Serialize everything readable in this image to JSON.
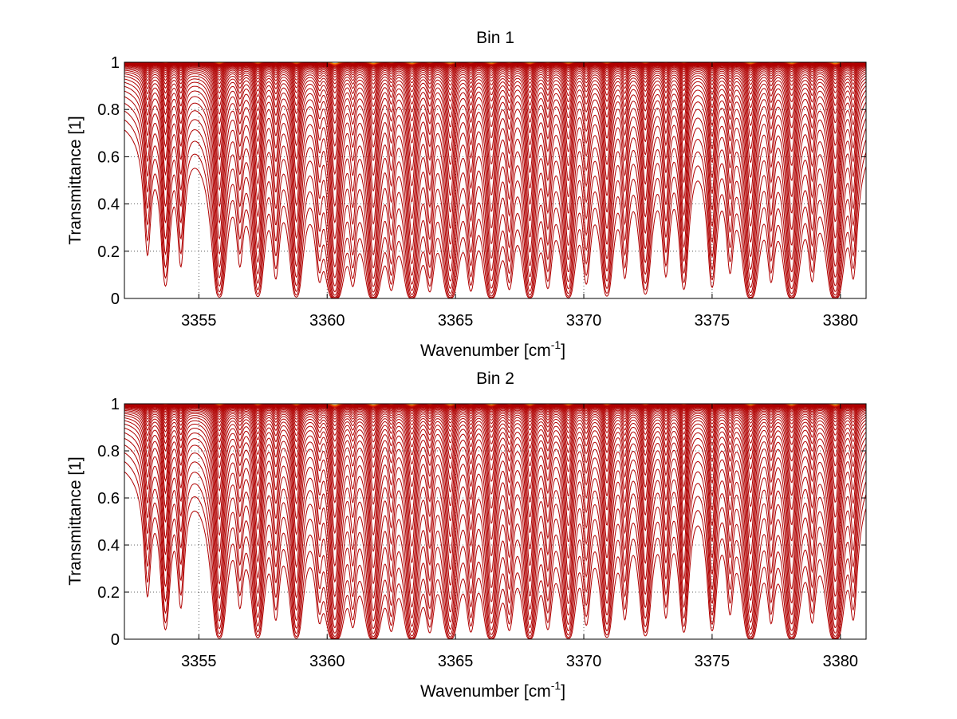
{
  "chart_data": [
    {
      "type": "line",
      "title": "Bin 1",
      "xlabel": "Wavenumber [cm",
      "xlabel_sup": "-1",
      "xlabel_end": "]",
      "ylabel": "Transmittance [1]",
      "xlim": [
        3352.1,
        3381.0
      ],
      "ylim": [
        0,
        1
      ],
      "xticks": [
        3355,
        3360,
        3365,
        3370,
        3375,
        3380
      ],
      "xtick_labels": [
        "3355",
        "3360",
        "3365",
        "3370",
        "3375",
        "3380"
      ],
      "yticks": [
        0,
        0.2,
        0.4,
        0.6,
        0.8,
        1
      ],
      "ytick_labels": [
        "0",
        "0.2",
        "0.4",
        "0.6",
        "0.8",
        "1"
      ],
      "grid": "dotted",
      "legend": "none",
      "series_count": 40,
      "series_colors": [
        "#b00000",
        "#d81e05",
        "#ee6a05",
        "#ffa500"
      ],
      "absorption_lines": [
        {
          "x": 3353.0,
          "strength": 0.25,
          "width": 0.12
        },
        {
          "x": 3353.7,
          "strength": 0.5,
          "width": 0.13
        },
        {
          "x": 3354.3,
          "strength": 0.3,
          "width": 0.12
        },
        {
          "x": 3355.8,
          "strength": 0.95,
          "width": 0.16
        },
        {
          "x": 3356.6,
          "strength": 0.25,
          "width": 0.12
        },
        {
          "x": 3357.3,
          "strength": 0.85,
          "width": 0.15
        },
        {
          "x": 3358.0,
          "strength": 0.35,
          "width": 0.12
        },
        {
          "x": 3358.8,
          "strength": 0.9,
          "width": 0.15
        },
        {
          "x": 3359.7,
          "strength": 0.3,
          "width": 0.12
        },
        {
          "x": 3360.3,
          "strength": 1.7,
          "width": 0.17
        },
        {
          "x": 3361.0,
          "strength": 0.35,
          "width": 0.12
        },
        {
          "x": 3361.8,
          "strength": 1.4,
          "width": 0.17
        },
        {
          "x": 3362.5,
          "strength": 0.45,
          "width": 0.13
        },
        {
          "x": 3363.3,
          "strength": 1.3,
          "width": 0.17
        },
        {
          "x": 3364.0,
          "strength": 0.5,
          "width": 0.13
        },
        {
          "x": 3364.8,
          "strength": 1.2,
          "width": 0.17
        },
        {
          "x": 3365.6,
          "strength": 0.5,
          "width": 0.13
        },
        {
          "x": 3366.4,
          "strength": 1.2,
          "width": 0.17
        },
        {
          "x": 3367.1,
          "strength": 0.45,
          "width": 0.13
        },
        {
          "x": 3367.9,
          "strength": 1.1,
          "width": 0.16
        },
        {
          "x": 3368.6,
          "strength": 0.45,
          "width": 0.13
        },
        {
          "x": 3369.4,
          "strength": 1.0,
          "width": 0.16
        },
        {
          "x": 3370.1,
          "strength": 0.4,
          "width": 0.13
        },
        {
          "x": 3370.9,
          "strength": 0.8,
          "width": 0.15
        },
        {
          "x": 3371.6,
          "strength": 0.35,
          "width": 0.12
        },
        {
          "x": 3372.4,
          "strength": 0.7,
          "width": 0.15
        },
        {
          "x": 3373.2,
          "strength": 0.35,
          "width": 0.12
        },
        {
          "x": 3373.9,
          "strength": 0.55,
          "width": 0.13
        },
        {
          "x": 3375.0,
          "strength": 0.5,
          "width": 0.13
        },
        {
          "x": 3375.7,
          "strength": 0.3,
          "width": 0.12
        },
        {
          "x": 3376.5,
          "strength": 1.2,
          "width": 0.17
        },
        {
          "x": 3377.3,
          "strength": 0.35,
          "width": 0.12
        },
        {
          "x": 3378.1,
          "strength": 1.25,
          "width": 0.17
        },
        {
          "x": 3378.9,
          "strength": 0.35,
          "width": 0.12
        },
        {
          "x": 3379.8,
          "strength": 1.4,
          "width": 0.17
        },
        {
          "x": 3380.5,
          "strength": 0.35,
          "width": 0.12
        }
      ]
    },
    {
      "type": "line",
      "title": "Bin 2",
      "xlabel": "Wavenumber [cm",
      "xlabel_sup": "-1",
      "xlabel_end": "]",
      "ylabel": "Transmittance [1]",
      "xlim": [
        3352.1,
        3381.0
      ],
      "ylim": [
        0,
        1
      ],
      "xticks": [
        3355,
        3360,
        3365,
        3370,
        3375,
        3380
      ],
      "xtick_labels": [
        "3355",
        "3360",
        "3365",
        "3370",
        "3375",
        "3380"
      ],
      "yticks": [
        0,
        0.2,
        0.4,
        0.6,
        0.8,
        1
      ],
      "ytick_labels": [
        "0",
        "0.2",
        "0.4",
        "0.6",
        "0.8",
        "1"
      ],
      "grid": "dotted",
      "legend": "none",
      "series_count": 40,
      "series_colors": [
        "#b00000",
        "#d81e05",
        "#ee6a05",
        "#ffa500"
      ],
      "absorption_lines": [
        {
          "x": 3353.0,
          "strength": 0.25,
          "width": 0.12
        },
        {
          "x": 3353.7,
          "strength": 0.55,
          "width": 0.13
        },
        {
          "x": 3354.3,
          "strength": 0.3,
          "width": 0.12
        },
        {
          "x": 3355.8,
          "strength": 1.0,
          "width": 0.16
        },
        {
          "x": 3356.6,
          "strength": 0.25,
          "width": 0.12
        },
        {
          "x": 3357.3,
          "strength": 0.9,
          "width": 0.15
        },
        {
          "x": 3358.0,
          "strength": 0.35,
          "width": 0.12
        },
        {
          "x": 3358.8,
          "strength": 0.95,
          "width": 0.15
        },
        {
          "x": 3359.7,
          "strength": 0.3,
          "width": 0.12
        },
        {
          "x": 3360.3,
          "strength": 1.75,
          "width": 0.17
        },
        {
          "x": 3361.0,
          "strength": 0.35,
          "width": 0.12
        },
        {
          "x": 3361.8,
          "strength": 1.45,
          "width": 0.17
        },
        {
          "x": 3362.5,
          "strength": 0.45,
          "width": 0.13
        },
        {
          "x": 3363.3,
          "strength": 1.35,
          "width": 0.17
        },
        {
          "x": 3364.0,
          "strength": 0.5,
          "width": 0.13
        },
        {
          "x": 3364.8,
          "strength": 1.2,
          "width": 0.17
        },
        {
          "x": 3365.6,
          "strength": 0.5,
          "width": 0.13
        },
        {
          "x": 3366.4,
          "strength": 1.25,
          "width": 0.17
        },
        {
          "x": 3367.1,
          "strength": 0.45,
          "width": 0.13
        },
        {
          "x": 3367.9,
          "strength": 1.15,
          "width": 0.16
        },
        {
          "x": 3368.6,
          "strength": 0.45,
          "width": 0.13
        },
        {
          "x": 3369.4,
          "strength": 1.05,
          "width": 0.16
        },
        {
          "x": 3370.1,
          "strength": 0.4,
          "width": 0.13
        },
        {
          "x": 3370.9,
          "strength": 0.85,
          "width": 0.15
        },
        {
          "x": 3371.6,
          "strength": 0.35,
          "width": 0.12
        },
        {
          "x": 3372.4,
          "strength": 0.75,
          "width": 0.15
        },
        {
          "x": 3373.2,
          "strength": 0.35,
          "width": 0.12
        },
        {
          "x": 3373.9,
          "strength": 0.6,
          "width": 0.13
        },
        {
          "x": 3375.0,
          "strength": 0.55,
          "width": 0.13
        },
        {
          "x": 3375.7,
          "strength": 0.3,
          "width": 0.12
        },
        {
          "x": 3376.5,
          "strength": 1.25,
          "width": 0.17
        },
        {
          "x": 3377.3,
          "strength": 0.35,
          "width": 0.12
        },
        {
          "x": 3378.1,
          "strength": 1.3,
          "width": 0.17
        },
        {
          "x": 3378.9,
          "strength": 0.35,
          "width": 0.12
        },
        {
          "x": 3379.8,
          "strength": 1.45,
          "width": 0.17
        },
        {
          "x": 3380.5,
          "strength": 0.35,
          "width": 0.12
        }
      ]
    }
  ]
}
